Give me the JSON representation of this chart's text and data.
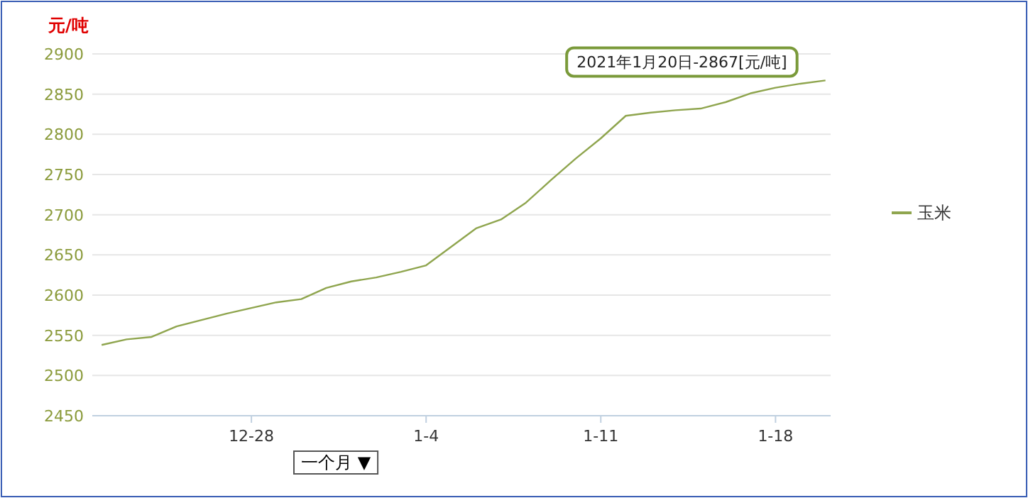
{
  "chart_data": {
    "type": "line",
    "ylabel": "元/吨",
    "x": [
      "2020-12-22",
      "2020-12-23",
      "2020-12-24",
      "2020-12-25",
      "2020-12-26",
      "2020-12-27",
      "2020-12-28",
      "2020-12-29",
      "2020-12-30",
      "2020-12-31",
      "2021-01-01",
      "2021-01-02",
      "2021-01-03",
      "2021-01-04",
      "2021-01-05",
      "2021-01-06",
      "2021-01-07",
      "2021-01-08",
      "2021-01-09",
      "2021-01-10",
      "2021-01-11",
      "2021-01-12",
      "2021-01-13",
      "2021-01-14",
      "2021-01-15",
      "2021-01-16",
      "2021-01-17",
      "2021-01-18",
      "2021-01-19",
      "2021-01-20"
    ],
    "series": [
      {
        "name": "玉米",
        "color": "#8fa54e",
        "values": [
          2538,
          2545,
          2548,
          2561,
          2569,
          2577,
          2584,
          2591,
          2595,
          2609,
          2617,
          2622,
          2629,
          2637,
          2660,
          2683,
          2694,
          2715,
          2743,
          2770,
          2795,
          2823,
          2827,
          2830,
          2832,
          2840,
          2851,
          2858,
          2863,
          2867
        ]
      }
    ],
    "xlim": [
      "2020-12-21T15:00",
      "2021-01-20T05:00"
    ],
    "xticks": [
      {
        "value": "2020-12-28",
        "label": "12-28"
      },
      {
        "value": "2021-01-04",
        "label": "1-4"
      },
      {
        "value": "2021-01-11",
        "label": "1-11"
      },
      {
        "value": "2021-01-18",
        "label": "1-18"
      }
    ],
    "ylim": [
      2450,
      2900
    ],
    "yticks": [
      2450,
      2500,
      2550,
      2600,
      2650,
      2700,
      2750,
      2800,
      2850,
      2900
    ],
    "grid": "y",
    "legend": "right",
    "marker": "none",
    "line_style": "solid",
    "annotations": [
      {
        "text": "2021年1月20日-2867[元/吨]",
        "x": "2021-01-20",
        "y": 2867
      },
      "一个月 ▼"
    ]
  }
}
